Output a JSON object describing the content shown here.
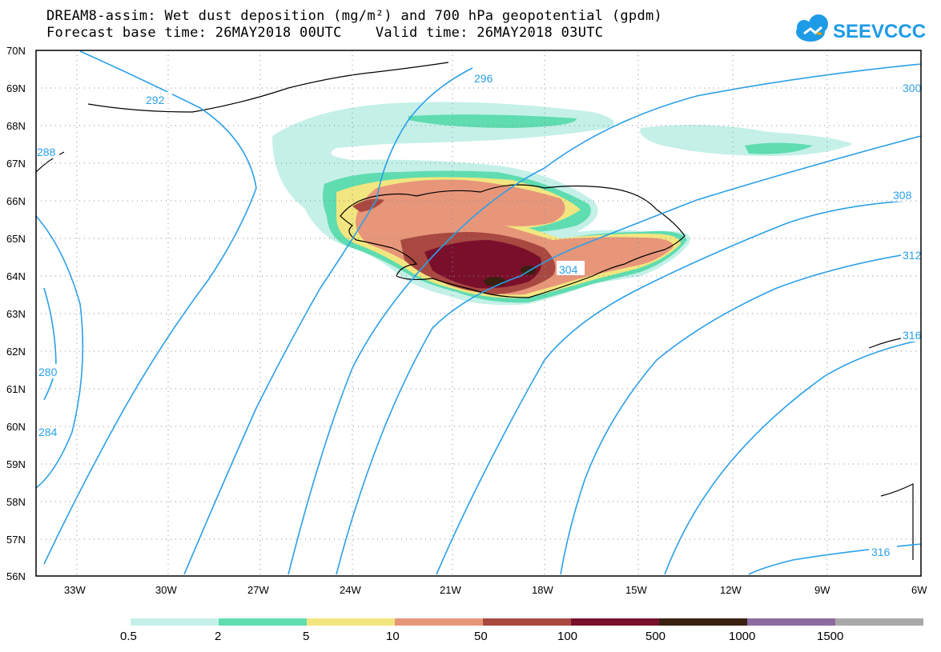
{
  "header": {
    "title_line1": "DREAM8-assim: Wet dust deposition (mg/m²) and 700 hPa geopotential (gpdm)",
    "title_line2": "Forecast base time: 26MAY2018 00UTC    Valid time: 26MAY2018 03UTC"
  },
  "logo": {
    "text": "SEEVCCC",
    "icon": "cloud-icon",
    "color": "#1e9be6"
  },
  "map": {
    "lat_labels": [
      "70N",
      "69N",
      "68N",
      "67N",
      "66N",
      "65N",
      "64N",
      "63N",
      "62N",
      "61N",
      "60N",
      "59N",
      "58N",
      "57N",
      "56N"
    ],
    "lon_labels": [
      "33W",
      "30W",
      "27W",
      "24W",
      "21W",
      "18W",
      "15W",
      "12W",
      "9W",
      "6W"
    ],
    "contour_labels": [
      "292",
      "296",
      "300",
      "304",
      "308",
      "312",
      "316",
      "316",
      "288",
      "280",
      "284"
    ],
    "contour_color": "#2aa0e8"
  },
  "legend": {
    "labels": [
      "0.5",
      "2",
      "5",
      "10",
      "50",
      "100",
      "500",
      "1000",
      "1500"
    ],
    "colors": [
      "#c4f0e8",
      "#5fdcb0",
      "#f2e680",
      "#e8967a",
      "#a84840",
      "#7a0f2c",
      "#3a2010",
      "#8e6aa2",
      "#a8a8a8"
    ]
  }
}
